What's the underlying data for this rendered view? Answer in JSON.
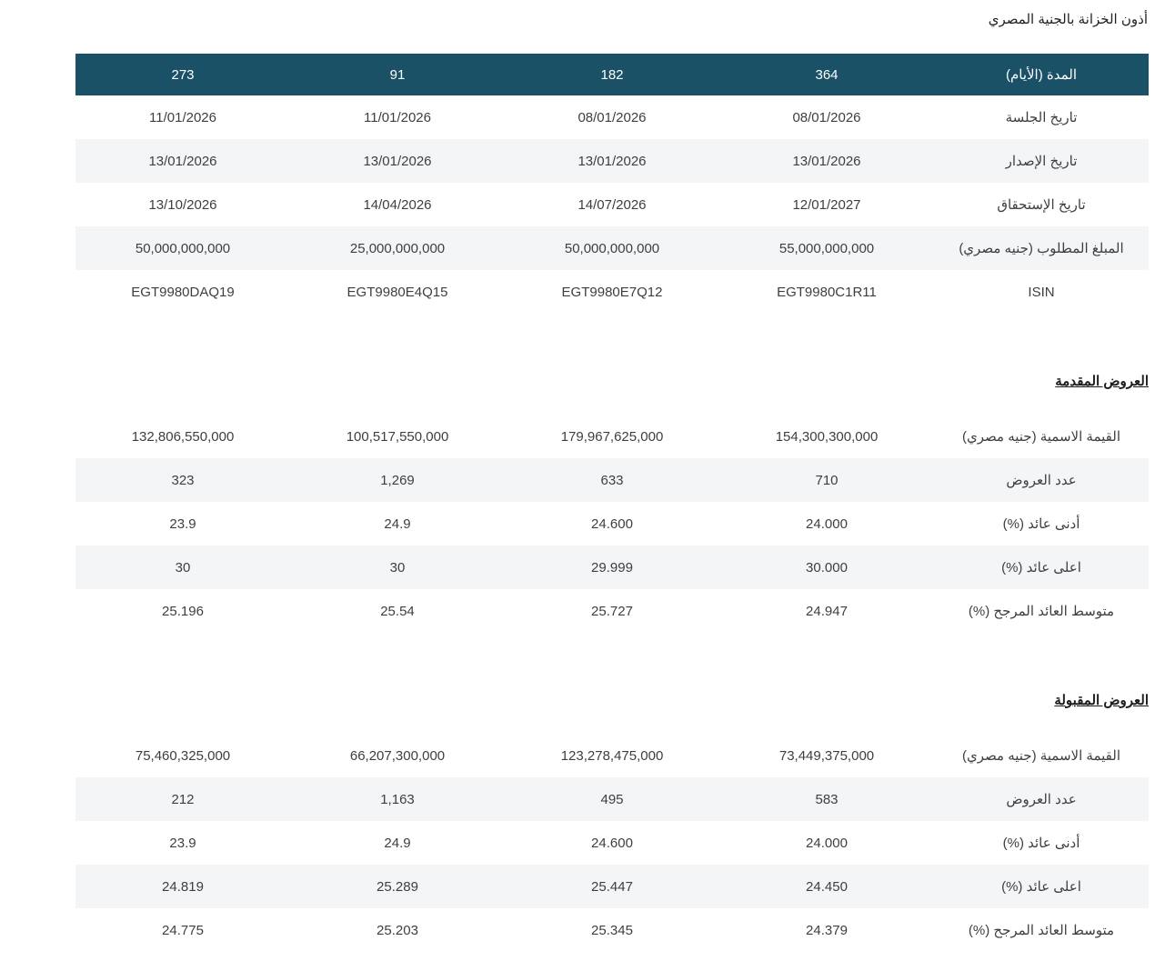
{
  "page": {
    "title": "أذون الخزانة بالجنية المصري"
  },
  "colors": {
    "header_bg": "#1a5166",
    "header_text": "#ffffff",
    "stripe_bg": "#f4f5f6",
    "body_text": "#3c3f42"
  },
  "main_table": {
    "header": {
      "label": "المدة (الأيام)",
      "columns": [
        "364",
        "182",
        "91",
        "273"
      ]
    },
    "rows": [
      {
        "label": "تاريخ الجلسة",
        "values": [
          "08/01/2026",
          "08/01/2026",
          "11/01/2026",
          "11/01/2026"
        ]
      },
      {
        "label": "تاريخ الإصدار",
        "values": [
          "13/01/2026",
          "13/01/2026",
          "13/01/2026",
          "13/01/2026"
        ]
      },
      {
        "label": "تاريخ الإستحقاق",
        "values": [
          "12/01/2027",
          "14/07/2026",
          "14/04/2026",
          "13/10/2026"
        ]
      },
      {
        "label": "المبلغ المطلوب (جنيه مصري)",
        "values": [
          "55,000,000,000",
          "50,000,000,000",
          "25,000,000,000",
          "50,000,000,000"
        ]
      },
      {
        "label": "ISIN",
        "values": [
          "EGT9980C1R11",
          "EGT9980E7Q12",
          "EGT9980E4Q15",
          "EGT9980DAQ19"
        ]
      }
    ]
  },
  "submitted_offers": {
    "heading": "العروض المقدمة",
    "rows": [
      {
        "label": "القيمة الاسمية (جنيه مصري)",
        "values": [
          "154,300,300,000",
          "179,967,625,000",
          "100,517,550,000",
          "132,806,550,000"
        ]
      },
      {
        "label": "عدد العروض",
        "values": [
          "710",
          "633",
          "1,269",
          "323"
        ]
      },
      {
        "label": "أدنى عائد (%)",
        "values": [
          "24.000",
          "24.600",
          "24.9",
          "23.9"
        ]
      },
      {
        "label": "اعلى عائد (%)",
        "values": [
          "30.000",
          "29.999",
          "30",
          "30"
        ]
      },
      {
        "label": "متوسط العائد المرجح (%)",
        "values": [
          "24.947",
          "25.727",
          "25.54",
          "25.196"
        ]
      }
    ]
  },
  "accepted_offers": {
    "heading": "العروض المقبولة",
    "rows": [
      {
        "label": "القيمة الاسمية (جنيه مصري)",
        "values": [
          "73,449,375,000",
          "123,278,475,000",
          "66,207,300,000",
          "75,460,325,000"
        ]
      },
      {
        "label": "عدد العروض",
        "values": [
          "583",
          "495",
          "1,163",
          "212"
        ]
      },
      {
        "label": "أدنى عائد (%)",
        "values": [
          "24.000",
          "24.600",
          "24.9",
          "23.9"
        ]
      },
      {
        "label": "اعلى عائد (%)",
        "values": [
          "24.450",
          "25.447",
          "25.289",
          "24.819"
        ]
      },
      {
        "label": "متوسط العائد المرجح (%)",
        "values": [
          "24.379",
          "25.345",
          "25.203",
          "24.775"
        ]
      }
    ]
  }
}
